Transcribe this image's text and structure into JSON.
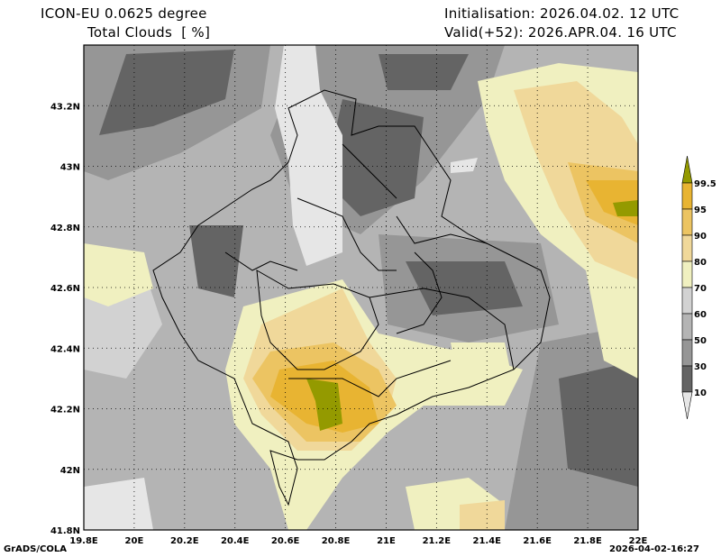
{
  "header": {
    "model": "ICON-EU 0.0625 degree",
    "field": "Total Clouds  [ %]",
    "init": "Initialisation: 2026.04.02. 12 UTC",
    "valid": "Valid(+52): 2026.APR.04. 16 UTC"
  },
  "footer": {
    "left": "GrADS/COLA",
    "right": "2026-04-02-16:27"
  },
  "map": {
    "lon_ticks": [
      "19.8E",
      "20E",
      "20.2E",
      "20.4E",
      "20.6E",
      "20.8E",
      "21E",
      "21.2E",
      "21.4E",
      "21.6E",
      "21.8E",
      "22E"
    ],
    "lat_ticks": [
      "43.2N",
      "43N",
      "42.8N",
      "42.6N",
      "42.4N",
      "42.2N",
      "42N",
      "41.8N"
    ],
    "lon_range": [
      19.8,
      22.0
    ],
    "lat_range": [
      41.8,
      43.4
    ]
  },
  "legend": {
    "labels": [
      "99.5",
      "95",
      "90",
      "80",
      "70",
      "60",
      "50",
      "30",
      "10"
    ],
    "colors": {
      "above_99_5": "#949a00",
      "95_99_5": "#e8b432",
      "90_95": "#ecc462",
      "80_90": "#f0d89a",
      "70_80": "#f0f0c0",
      "60_70": "#d2d2d2",
      "50_60": "#b4b4b4",
      "30_50": "#969696",
      "10_30": "#646464",
      "below_10": "#e6e6e6"
    }
  }
}
